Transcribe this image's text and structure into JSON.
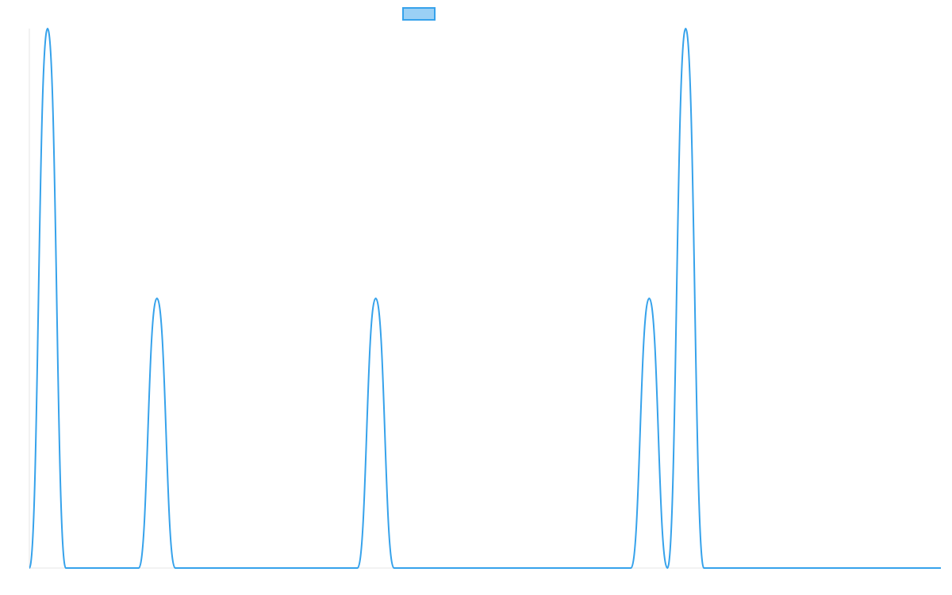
{
  "chart_data": {
    "type": "line",
    "legend": {
      "position": "top-center",
      "entries": [
        {
          "name": "",
          "color": "#36a2eb",
          "fill": "#9ad0f5"
        }
      ]
    },
    "grid": false,
    "xlim": [
      0,
      1000
    ],
    "ylim": [
      0,
      1
    ],
    "series": [
      {
        "name": "",
        "color": "#36a2eb",
        "points": [
          [
            0,
            0
          ],
          [
            20,
            1
          ],
          [
            40,
            0
          ],
          [
            120,
            0
          ],
          [
            140,
            0.5
          ],
          [
            160,
            0
          ],
          [
            360,
            0
          ],
          [
            380,
            0.5
          ],
          [
            400,
            0
          ],
          [
            660,
            0
          ],
          [
            680,
            0.5
          ],
          [
            700,
            0
          ],
          [
            720,
            1
          ],
          [
            740,
            0
          ],
          [
            1000,
            0
          ]
        ]
      }
    ]
  }
}
